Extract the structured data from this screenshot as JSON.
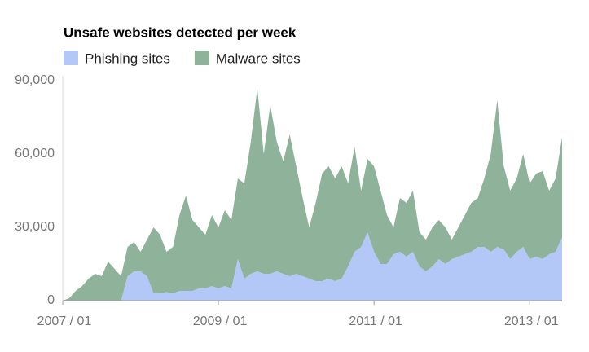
{
  "chart_data": {
    "type": "stacked-area",
    "title": "Unsafe websites detected per week",
    "x": [
      "2007-01",
      "2007-02",
      "2007-03",
      "2007-04",
      "2007-05",
      "2007-06",
      "2007-07",
      "2007-08",
      "2007-09",
      "2007-10",
      "2007-11",
      "2007-12",
      "2008-01",
      "2008-02",
      "2008-03",
      "2008-04",
      "2008-05",
      "2008-06",
      "2008-07",
      "2008-08",
      "2008-09",
      "2008-10",
      "2008-11",
      "2008-12",
      "2009-01",
      "2009-02",
      "2009-03",
      "2009-04",
      "2009-05",
      "2009-06",
      "2009-07",
      "2009-08",
      "2009-09",
      "2009-10",
      "2009-11",
      "2009-12",
      "2010-01",
      "2010-02",
      "2010-03",
      "2010-04",
      "2010-05",
      "2010-06",
      "2010-07",
      "2010-08",
      "2010-09",
      "2010-10",
      "2010-11",
      "2010-12",
      "2011-01",
      "2011-02",
      "2011-03",
      "2011-04",
      "2011-05",
      "2011-06",
      "2011-07",
      "2011-08",
      "2011-09",
      "2011-10",
      "2011-11",
      "2011-12",
      "2012-01",
      "2012-02",
      "2012-03",
      "2012-04",
      "2012-05",
      "2012-06",
      "2012-07",
      "2012-08",
      "2012-09",
      "2012-10",
      "2012-11",
      "2012-12",
      "2013-01",
      "2013-02",
      "2013-03",
      "2013-04",
      "2013-05",
      "2013-06"
    ],
    "series": [
      {
        "name": "Phishing sites",
        "color": "#b3c8f7",
        "values": [
          0,
          0,
          0,
          0,
          0,
          0,
          0,
          0,
          0,
          0,
          10000,
          12000,
          12000,
          10000,
          3000,
          3000,
          3500,
          3000,
          4000,
          4000,
          4000,
          5000,
          5000,
          6000,
          5000,
          6000,
          5000,
          17000,
          9000,
          11000,
          12000,
          11000,
          11000,
          12000,
          11000,
          10000,
          11000,
          10000,
          9000,
          8000,
          8000,
          9000,
          8000,
          9000,
          14000,
          20000,
          22000,
          28000,
          20000,
          15000,
          15000,
          19000,
          20000,
          18000,
          20000,
          14000,
          12000,
          14000,
          17000,
          15000,
          17000,
          18000,
          19000,
          20000,
          22000,
          22000,
          20000,
          22000,
          21000,
          17000,
          20000,
          22000,
          17000,
          18000,
          17000,
          19000,
          20000,
          26000
        ]
      },
      {
        "name": "Malware sites",
        "color": "#8fb39a",
        "values": [
          0,
          1000,
          4000,
          6000,
          9000,
          11000,
          10000,
          16000,
          13000,
          10000,
          12000,
          12000,
          8000,
          15000,
          27000,
          24000,
          16500,
          19000,
          31000,
          39000,
          29000,
          25000,
          22000,
          29000,
          25000,
          31000,
          28000,
          33000,
          39000,
          54000,
          75000,
          49000,
          69000,
          53000,
          46000,
          58000,
          44000,
          32000,
          21000,
          32000,
          44000,
          46000,
          42000,
          46000,
          34000,
          43000,
          23000,
          30000,
          35000,
          30000,
          20000,
          11000,
          22000,
          22000,
          25000,
          14000,
          13000,
          16000,
          16000,
          15000,
          8000,
          12000,
          16000,
          20000,
          20000,
          28000,
          40000,
          60000,
          34000,
          28000,
          30000,
          38000,
          31000,
          34000,
          36000,
          26000,
          30000,
          41000
        ]
      }
    ],
    "xlim": [
      "2007-01",
      "2013-06"
    ],
    "xticks": [
      {
        "value": "2007-01",
        "label": "2007 / 01"
      },
      {
        "value": "2009-01",
        "label": "2009 / 01"
      },
      {
        "value": "2011-01",
        "label": "2011 / 01"
      },
      {
        "value": "2013-01",
        "label": "2013 / 01"
      }
    ],
    "ylim": [
      0,
      90000
    ],
    "yticks": [
      0,
      {
        "value": 30000,
        "label": "30,000"
      },
      {
        "value": 60000,
        "label": "60,000"
      },
      {
        "value": 90000,
        "label": "90,000"
      }
    ],
    "legend": "top"
  }
}
